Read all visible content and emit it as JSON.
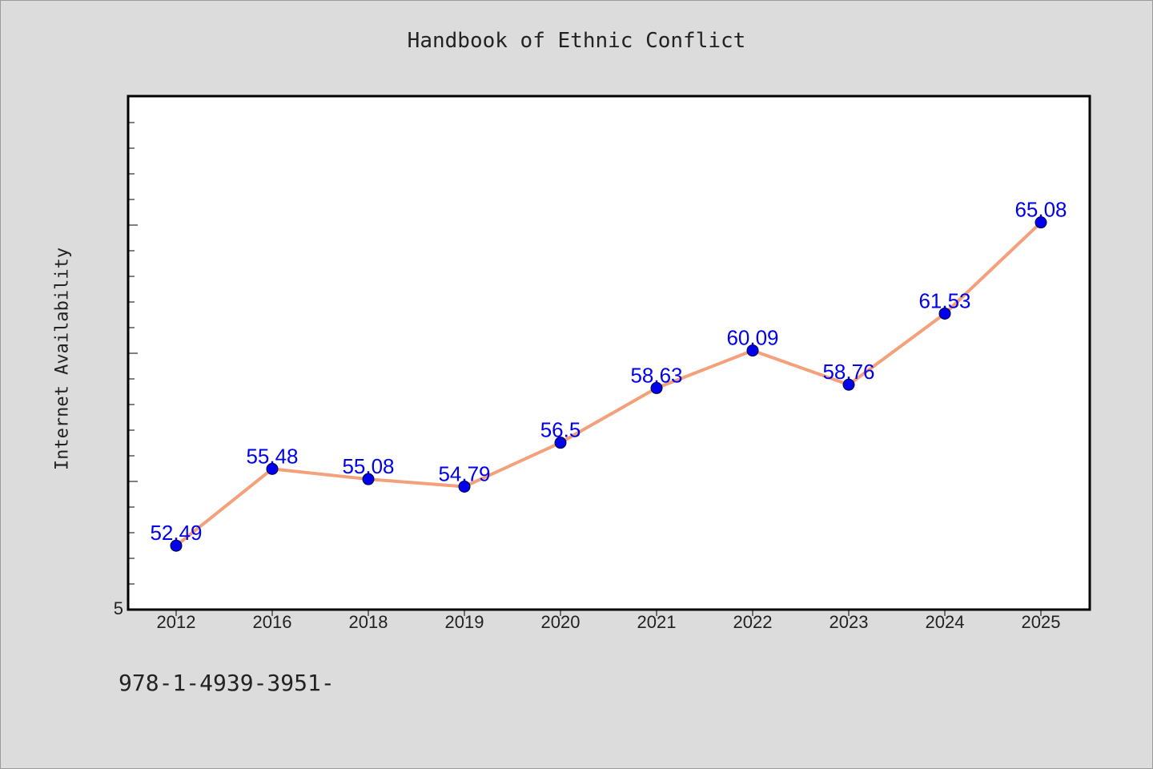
{
  "chart": {
    "title": "Handbook of Ethnic Conflict",
    "ylabel": "Internet Availability",
    "footnote": "978-1-4939-3951-"
  },
  "colors": {
    "background": "#dcdcdc",
    "plot_background": "#ffffff",
    "line": "#f4a07a",
    "marker": "#0000ee",
    "data_label": "#0000ee"
  },
  "chart_data": {
    "type": "line",
    "title": "Handbook of Ethnic Conflict",
    "xlabel": "",
    "ylabel": "Internet Availability",
    "categories": [
      "2012",
      "2016",
      "2018",
      "2019",
      "2020",
      "2021",
      "2022",
      "2023",
      "2024",
      "2025"
    ],
    "series": [
      {
        "values": [
          52.49,
          55.48,
          55.08,
          54.79,
          56.5,
          58.63,
          60.09,
          58.76,
          61.53,
          65.08
        ],
        "labels": [
          "52.49",
          "55.48",
          "55.08",
          "54.79",
          "56.5",
          "58.63",
          "60.09",
          "58.76",
          "61.53",
          "65.08"
        ]
      }
    ],
    "ylim": [
      50,
      70
    ],
    "y_tick_labels": [
      "5"
    ],
    "grid": false,
    "legend": "none"
  }
}
